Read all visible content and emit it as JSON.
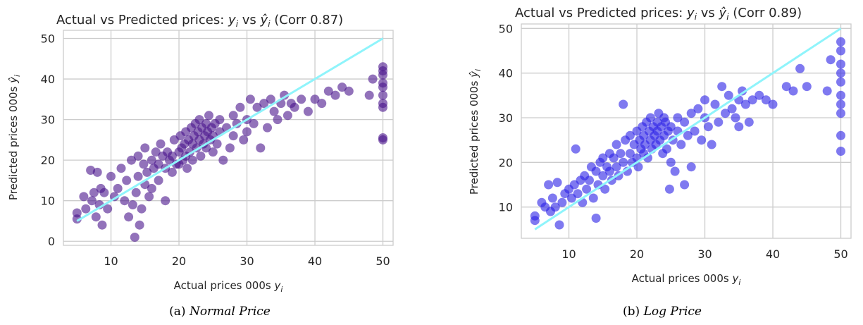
{
  "colors": {
    "normal_points": "#4a148c",
    "log_points": "#2a1fe6",
    "fit_line": "#8ff4fb",
    "grid": "#cccccc"
  },
  "captions": {
    "a_prefix": "(a) ",
    "a_text": "Normal Price",
    "b_prefix": "(b) ",
    "b_text": "Log Price"
  },
  "chart_data": [
    {
      "type": "scatter",
      "title_prefix": "Actual vs Predicted prices: ",
      "title_yi": "y",
      "title_sub": "i",
      "title_vs": " vs ",
      "title_yhat": "ŷ",
      "title_suffix": " (Corr 0.87)",
      "xlabel_prefix": "Actual prices 000s ",
      "ylabel_prefix": "Predicted prices 000s ",
      "xlim": [
        3,
        51.5
      ],
      "ylim": [
        -1,
        52
      ],
      "xticks": [
        10,
        20,
        30,
        40,
        50
      ],
      "yticks": [
        0,
        10,
        20,
        30,
        40,
        50
      ],
      "grid": true,
      "line": {
        "x": [
          5,
          50
        ],
        "y": [
          5,
          50
        ]
      },
      "points": [
        [
          5,
          7
        ],
        [
          5,
          5.5
        ],
        [
          6,
          11
        ],
        [
          6.3,
          8
        ],
        [
          7,
          17.5
        ],
        [
          7.2,
          10
        ],
        [
          7.5,
          12
        ],
        [
          7.8,
          6
        ],
        [
          8,
          17
        ],
        [
          8.3,
          9
        ],
        [
          8.5,
          13
        ],
        [
          8.7,
          4
        ],
        [
          9,
          12
        ],
        [
          9.5,
          8
        ],
        [
          10,
          16
        ],
        [
          10.5,
          11
        ],
        [
          11,
          13
        ],
        [
          11.5,
          18
        ],
        [
          12,
          10
        ],
        [
          12.3,
          15
        ],
        [
          12.6,
          6
        ],
        [
          13,
          20
        ],
        [
          13.2,
          9
        ],
        [
          13.5,
          1
        ],
        [
          13.7,
          12
        ],
        [
          14,
          16
        ],
        [
          14,
          21
        ],
        [
          14.2,
          4
        ],
        [
          14.5,
          8
        ],
        [
          14.8,
          19
        ],
        [
          15,
          14
        ],
        [
          15,
          23
        ],
        [
          15.3,
          17
        ],
        [
          15.6,
          11
        ],
        [
          16,
          20
        ],
        [
          16,
          13
        ],
        [
          16.3,
          18
        ],
        [
          16.6,
          22
        ],
        [
          17,
          15
        ],
        [
          17,
          19
        ],
        [
          17.3,
          24
        ],
        [
          17.6,
          21
        ],
        [
          18,
          18
        ],
        [
          18,
          10
        ],
        [
          18.3,
          22
        ],
        [
          18.6,
          20
        ],
        [
          19,
          21
        ],
        [
          19,
          17
        ],
        [
          19.3,
          25
        ],
        [
          19.6,
          19
        ],
        [
          20,
          22
        ],
        [
          20,
          19
        ],
        [
          20.2,
          26
        ],
        [
          20.4,
          23
        ],
        [
          20.6,
          20
        ],
        [
          20.8,
          24
        ],
        [
          21,
          21
        ],
        [
          21,
          27
        ],
        [
          21.2,
          18
        ],
        [
          21.4,
          25
        ],
        [
          21.6,
          22
        ],
        [
          21.8,
          28
        ],
        [
          22,
          24
        ],
        [
          22,
          20
        ],
        [
          22.2,
          26
        ],
        [
          22.4,
          29
        ],
        [
          22.6,
          23
        ],
        [
          22.8,
          27
        ],
        [
          23,
          25
        ],
        [
          23,
          30
        ],
        [
          23.2,
          21
        ],
        [
          23.4,
          28
        ],
        [
          23.6,
          24
        ],
        [
          23.8,
          26
        ],
        [
          24,
          29
        ],
        [
          24,
          23
        ],
        [
          24.2,
          27
        ],
        [
          24.4,
          31
        ],
        [
          24.6,
          25
        ],
        [
          24.8,
          28
        ],
        [
          25,
          26
        ],
        [
          25,
          22
        ],
        [
          25.3,
          29
        ],
        [
          25.6,
          24
        ],
        [
          26,
          30
        ],
        [
          26,
          27
        ],
        [
          26.5,
          20
        ],
        [
          27,
          28
        ],
        [
          27.5,
          23
        ],
        [
          28,
          31
        ],
        [
          28,
          26
        ],
        [
          28.5,
          29
        ],
        [
          29,
          33
        ],
        [
          29.5,
          25
        ],
        [
          30,
          30
        ],
        [
          30,
          27
        ],
        [
          30.5,
          35
        ],
        [
          31,
          29
        ],
        [
          31.5,
          33
        ],
        [
          32,
          23
        ],
        [
          32.5,
          34
        ],
        [
          33,
          28
        ],
        [
          33.5,
          35
        ],
        [
          34,
          32
        ],
        [
          34.5,
          30
        ],
        [
          35,
          34
        ],
        [
          35.5,
          36
        ],
        [
          36,
          31
        ],
        [
          36.5,
          34
        ],
        [
          37,
          33
        ],
        [
          38,
          35
        ],
        [
          39,
          32
        ],
        [
          40,
          35
        ],
        [
          41,
          34
        ],
        [
          42,
          37
        ],
        [
          43,
          36
        ],
        [
          44,
          38
        ],
        [
          45,
          37
        ],
        [
          48,
          36
        ],
        [
          48.5,
          40
        ],
        [
          50,
          43
        ],
        [
          50,
          42
        ],
        [
          50,
          41
        ],
        [
          50,
          39
        ],
        [
          50,
          38
        ],
        [
          50,
          36
        ],
        [
          50,
          34
        ],
        [
          50,
          33
        ],
        [
          50,
          25.5
        ],
        [
          50,
          25
        ]
      ]
    },
    {
      "type": "scatter",
      "title_prefix": "Actual vs Predicted prices: ",
      "title_yi": "y",
      "title_sub": "i",
      "title_vs": " vs ",
      "title_yhat": "ŷ",
      "title_suffix": " (Corr 0.89)",
      "xlabel_prefix": "Actual prices 000s ",
      "ylabel_prefix": "Predicted prices 000s ",
      "xlim": [
        3,
        51.5
      ],
      "ylim": [
        3,
        51
      ],
      "xticks": [
        10,
        20,
        30,
        40,
        50
      ],
      "yticks": [
        10,
        20,
        30,
        40,
        50
      ],
      "grid": true,
      "line": {
        "x": [
          5,
          50
        ],
        "y": [
          5,
          50
        ]
      },
      "points": [
        [
          5,
          8
        ],
        [
          5,
          7
        ],
        [
          6,
          11
        ],
        [
          6.5,
          10
        ],
        [
          7,
          15
        ],
        [
          7.3,
          9
        ],
        [
          7.6,
          12
        ],
        [
          8,
          10
        ],
        [
          8.3,
          15.5
        ],
        [
          8.6,
          6
        ],
        [
          9,
          11
        ],
        [
          9.4,
          13
        ],
        [
          10,
          14
        ],
        [
          10.4,
          12
        ],
        [
          10.8,
          15
        ],
        [
          11,
          23
        ],
        [
          11.3,
          13
        ],
        [
          11.7,
          16
        ],
        [
          12,
          11
        ],
        [
          12.3,
          17
        ],
        [
          12.6,
          14
        ],
        [
          13,
          16
        ],
        [
          13.3,
          19
        ],
        [
          13.6,
          12
        ],
        [
          14,
          18
        ],
        [
          14,
          7.5
        ],
        [
          14.3,
          15
        ],
        [
          14.6,
          20
        ],
        [
          15,
          17
        ],
        [
          15,
          21
        ],
        [
          15.3,
          14
        ],
        [
          15.6,
          19
        ],
        [
          16,
          18
        ],
        [
          16,
          22
        ],
        [
          16.3,
          16
        ],
        [
          16.6,
          21
        ],
        [
          17,
          19
        ],
        [
          17,
          24
        ],
        [
          17.3,
          17
        ],
        [
          17.6,
          22
        ],
        [
          18,
          20
        ],
        [
          18,
          33
        ],
        [
          18.3,
          25
        ],
        [
          18.6,
          18
        ],
        [
          19,
          22
        ],
        [
          19,
          26
        ],
        [
          19.3,
          20
        ],
        [
          19.6,
          24
        ],
        [
          20,
          21
        ],
        [
          20,
          27
        ],
        [
          20.2,
          19
        ],
        [
          20.4,
          25
        ],
        [
          20.6,
          23
        ],
        [
          20.8,
          28
        ],
        [
          21,
          22
        ],
        [
          21,
          26
        ],
        [
          21.2,
          24
        ],
        [
          21.4,
          29
        ],
        [
          21.6,
          21
        ],
        [
          21.8,
          27
        ],
        [
          22,
          25
        ],
        [
          22,
          30
        ],
        [
          22.2,
          23
        ],
        [
          22.4,
          28
        ],
        [
          22.6,
          26
        ],
        [
          22.8,
          24
        ],
        [
          23,
          29
        ],
        [
          23,
          27
        ],
        [
          23.2,
          31
        ],
        [
          23.4,
          25
        ],
        [
          23.6,
          28
        ],
        [
          23.8,
          22
        ],
        [
          24,
          30
        ],
        [
          24,
          26
        ],
        [
          24.2,
          29
        ],
        [
          24.4,
          23
        ],
        [
          24.6,
          27
        ],
        [
          24.8,
          14
        ],
        [
          25,
          28
        ],
        [
          25,
          20
        ],
        [
          25.3,
          25
        ],
        [
          25.6,
          18
        ],
        [
          26,
          30
        ],
        [
          26,
          27
        ],
        [
          26.5,
          24
        ],
        [
          27,
          29
        ],
        [
          27,
          15
        ],
        [
          27.5,
          26
        ],
        [
          28,
          31
        ],
        [
          28,
          19
        ],
        [
          28.5,
          27
        ],
        [
          29,
          32
        ],
        [
          29.5,
          25
        ],
        [
          30,
          30
        ],
        [
          30,
          34
        ],
        [
          30.5,
          28
        ],
        [
          31,
          24
        ],
        [
          31.5,
          33
        ],
        [
          32,
          29
        ],
        [
          32.5,
          37
        ],
        [
          33,
          31
        ],
        [
          33.5,
          35
        ],
        [
          34,
          32
        ],
        [
          34.5,
          30
        ],
        [
          35,
          34
        ],
        [
          35,
          28
        ],
        [
          35.5,
          36
        ],
        [
          36,
          33
        ],
        [
          36.5,
          29
        ],
        [
          37,
          34
        ],
        [
          38,
          35
        ],
        [
          39,
          34
        ],
        [
          40,
          33
        ],
        [
          42,
          37
        ],
        [
          43,
          36
        ],
        [
          44,
          41
        ],
        [
          45,
          37
        ],
        [
          48,
          36
        ],
        [
          48.5,
          43
        ],
        [
          50,
          47
        ],
        [
          50,
          45
        ],
        [
          50,
          42
        ],
        [
          50,
          40
        ],
        [
          50,
          38
        ],
        [
          50,
          35
        ],
        [
          50,
          33
        ],
        [
          50,
          31
        ],
        [
          50,
          26
        ],
        [
          50,
          22.5
        ]
      ]
    }
  ]
}
